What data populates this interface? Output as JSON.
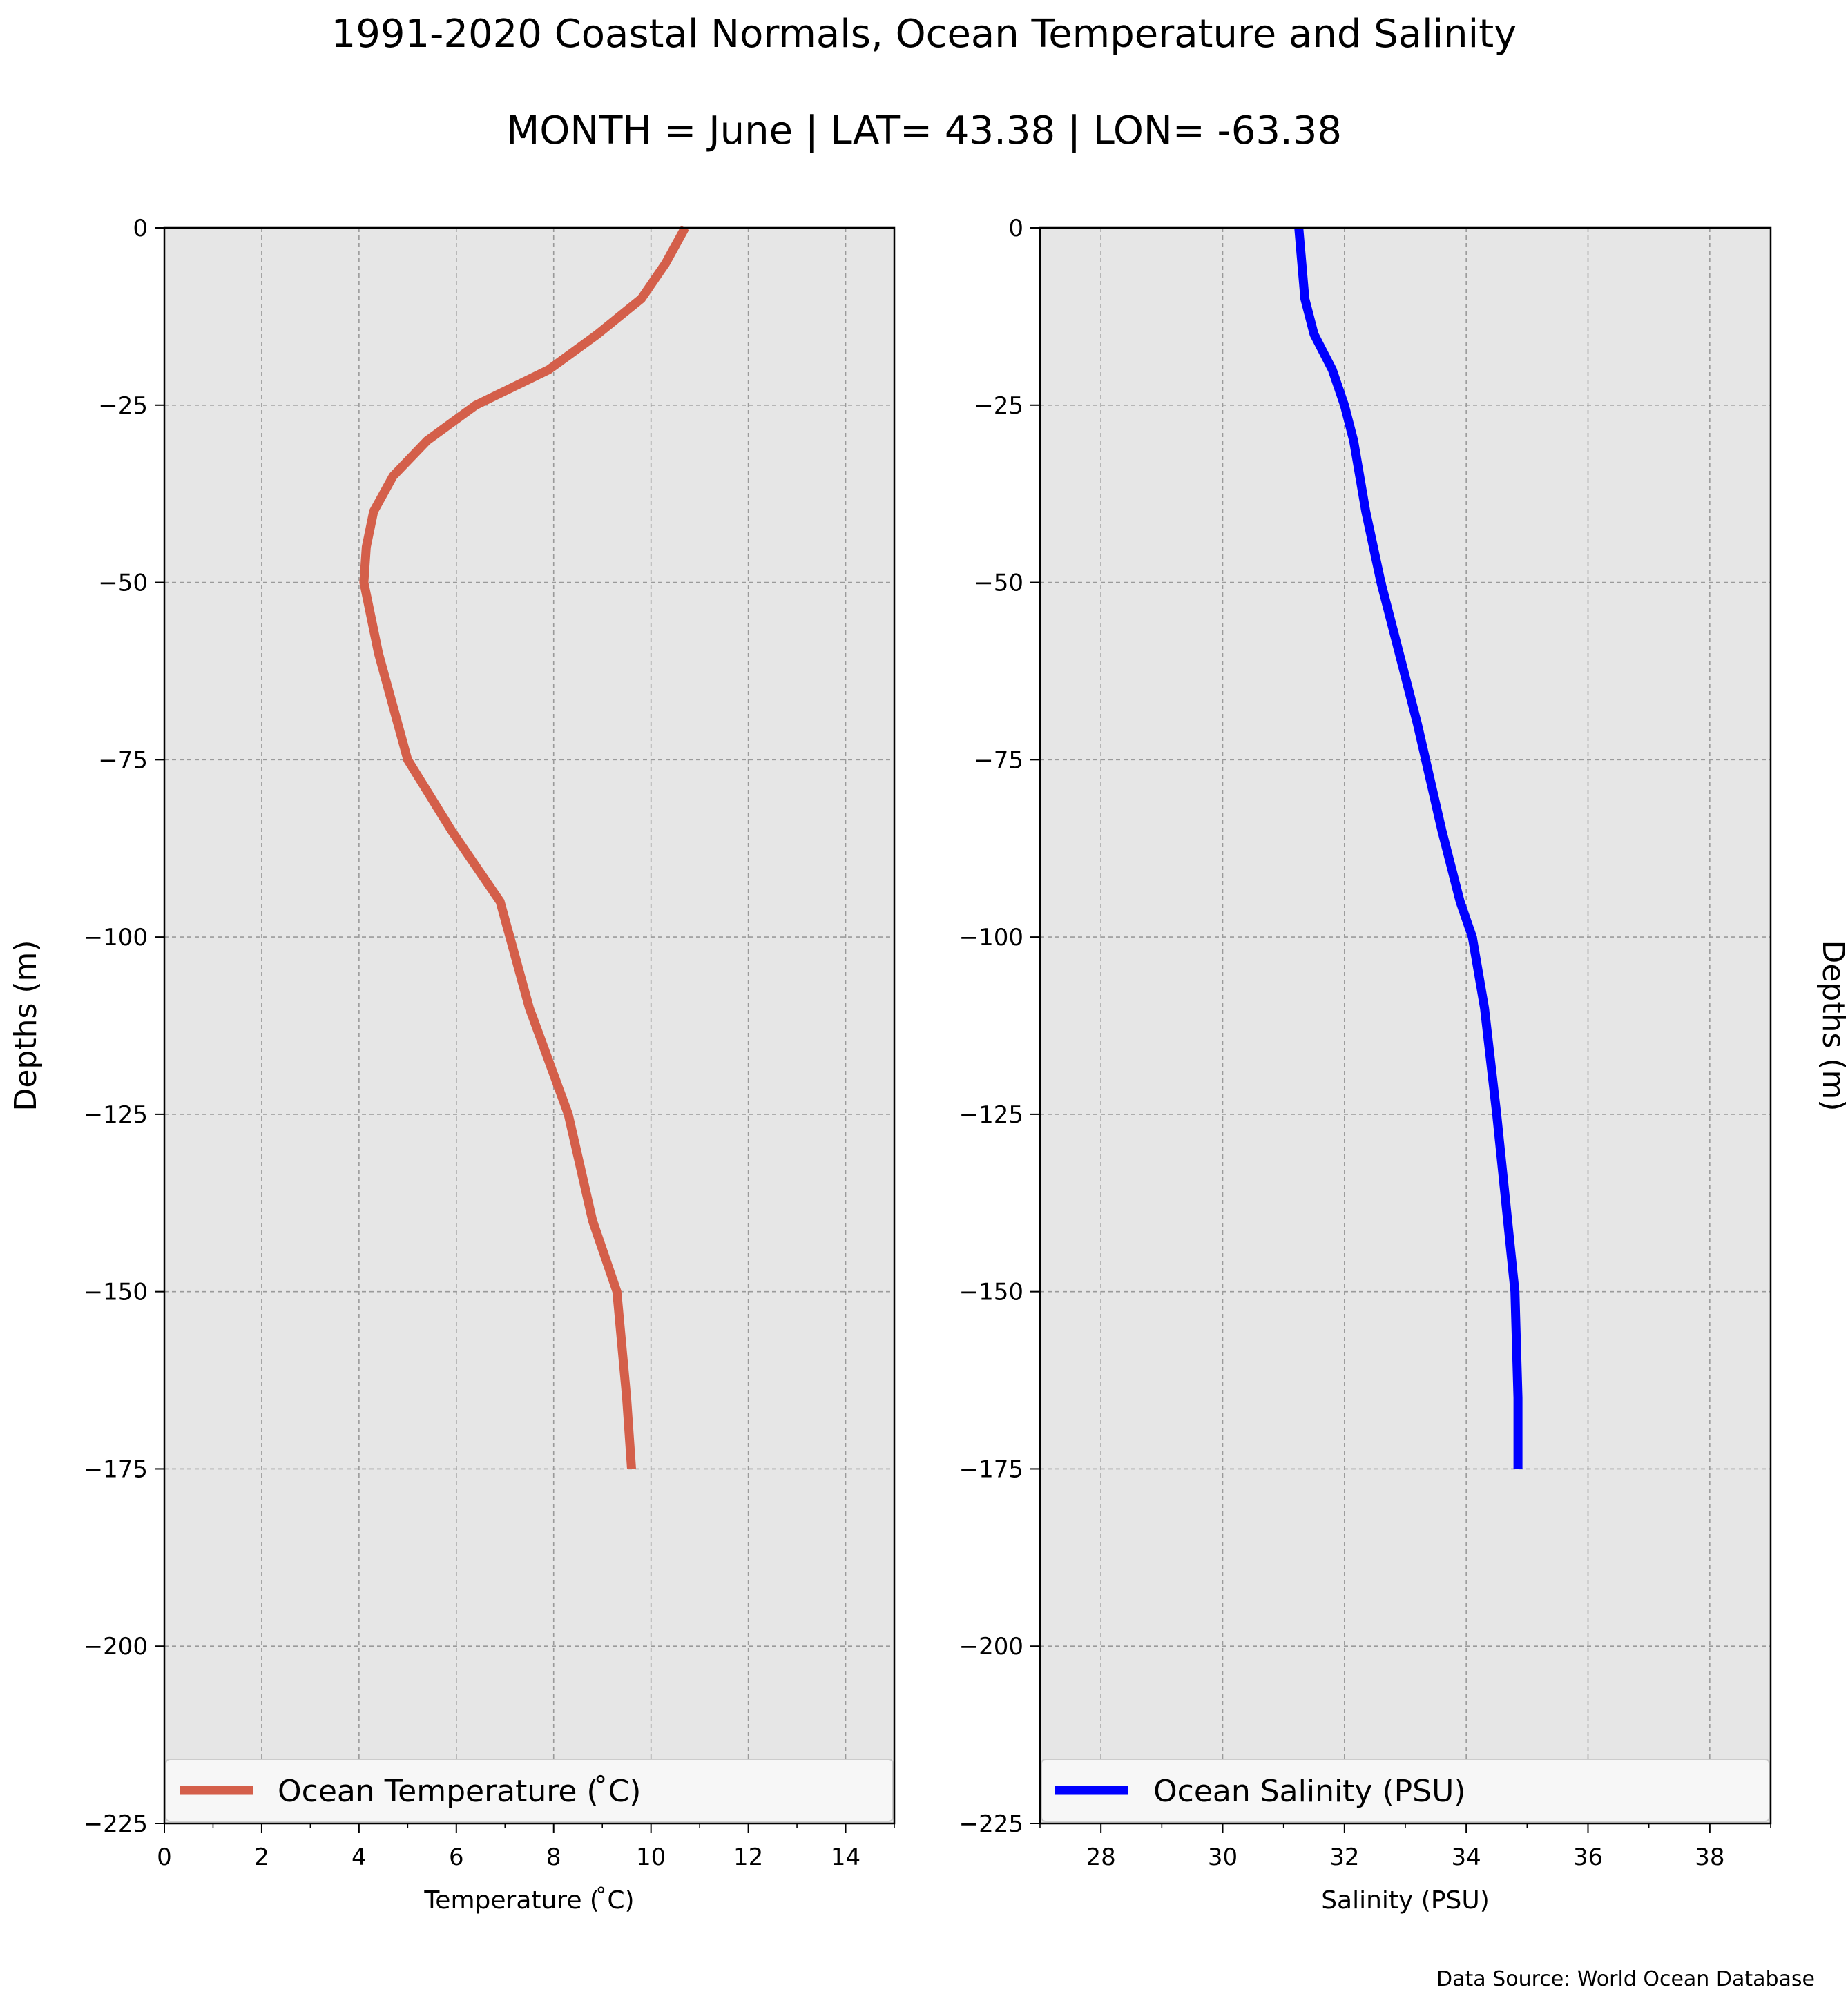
{
  "figure": {
    "title": "1991-2020 Coastal Normals, Ocean Temperature and Salinity",
    "subtitle": "MONTH = June | LAT= 43.38 | LON= -63.38",
    "source": "Data Source: World Ocean Database",
    "background": "#ffffff",
    "plot_background": "#e6e6e6"
  },
  "chart_data": [
    {
      "type": "line",
      "xlabel": "Temperature ($^\\circ$C)",
      "xlabel_display": "Temperature ( ̊C)",
      "ylabel": "Depths (m)",
      "ylabel_side": "left",
      "xlim": [
        0,
        15
      ],
      "ylim": [
        -225,
        0
      ],
      "xticks": [
        0,
        2,
        4,
        6,
        8,
        10,
        12,
        14
      ],
      "xminor_ticks": [
        1,
        3,
        5,
        7,
        9,
        11,
        13,
        15
      ],
      "yticks": [
        0,
        -25,
        -50,
        -75,
        -100,
        -125,
        -150,
        -175,
        -200,
        -225
      ],
      "ytick_labels": [
        "0",
        "−25",
        "−50",
        "−75",
        "−100",
        "−125",
        "−150",
        "−175",
        "−200",
        "−225"
      ],
      "grid": true,
      "legend_placement": "lower-center",
      "series": [
        {
          "name": "Ocean Temperature ( ̊C)",
          "color": "#d45f4a",
          "x": [
            10.7,
            10.3,
            9.8,
            8.9,
            7.9,
            6.4,
            5.4,
            4.7,
            4.3,
            4.15,
            4.1,
            4.4,
            5.0,
            5.9,
            6.9,
            7.5,
            8.3,
            8.8,
            9.3,
            9.5,
            9.6
          ],
          "y": [
            0,
            -5,
            -10,
            -15,
            -20,
            -25,
            -30,
            -35,
            -40,
            -45,
            -50,
            -60,
            -75,
            -85,
            -95,
            -110,
            -125,
            -140,
            -150,
            -165,
            -175
          ]
        }
      ]
    },
    {
      "type": "line",
      "xlabel": "Salinity (PSU)",
      "ylabel": "Depths (m)",
      "ylabel_side": "right",
      "xlim": [
        27,
        39
      ],
      "ylim": [
        -225,
        0
      ],
      "xticks": [
        28,
        30,
        32,
        34,
        36,
        38
      ],
      "xminor_ticks": [
        27,
        29,
        31,
        33,
        35,
        37,
        39
      ],
      "yticks": [
        0,
        -25,
        -50,
        -75,
        -100,
        -125,
        -150,
        -175,
        -200,
        -225
      ],
      "ytick_labels": [
        "0",
        "−25",
        "−50",
        "−75",
        "−100",
        "−125",
        "−150",
        "−175",
        "−200",
        "−225"
      ],
      "grid": true,
      "legend_placement": "lower-center",
      "series": [
        {
          "name": "Ocean Salinity (PSU)",
          "color": "#0000ff",
          "x": [
            31.25,
            31.3,
            31.35,
            31.5,
            31.8,
            32.0,
            32.15,
            32.35,
            32.6,
            32.9,
            33.2,
            33.6,
            33.9,
            34.1,
            34.3,
            34.5,
            34.8,
            34.85,
            34.85
          ],
          "y": [
            0,
            -5,
            -10,
            -15,
            -20,
            -25,
            -30,
            -40,
            -50,
            -60,
            -70,
            -85,
            -95,
            -100,
            -110,
            -125,
            -150,
            -165,
            -175
          ]
        }
      ]
    }
  ]
}
